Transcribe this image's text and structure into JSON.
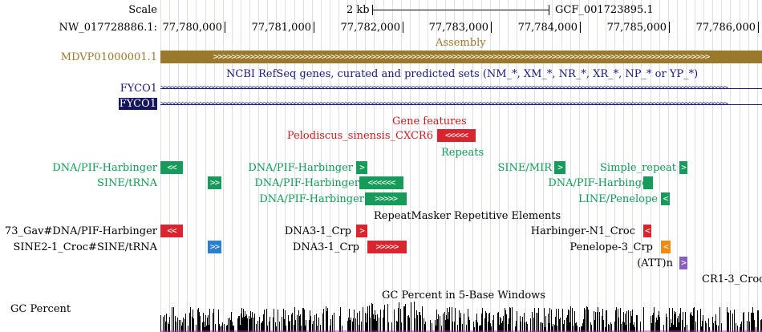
{
  "browser": {
    "scale_label": "Scale",
    "scale_value": "2 kb",
    "assembly_name": "GCF_001723895.1",
    "chrom_label": "NW_017728886.1:",
    "positions": [
      "77,780,000",
      "77,781,000",
      "77,782,000",
      "77,783,000",
      "77,784,000",
      "77,785,000",
      "77,786,000"
    ]
  },
  "assembly_track": {
    "title": "Assembly",
    "contig_label": "MDVP01000001.1",
    "color": "#9a7a2a"
  },
  "refseq_track": {
    "title": "NCBI RefSeq genes, curated and predicted sets (NM_*, XM_*, NR_*, XR_*, NP_* or YP_*)",
    "gene_1": "FYCO1",
    "gene_2": "FYCO1"
  },
  "gene_features": {
    "title": "Gene features",
    "item": "Pelodiscus_sinensis_CXCR6"
  },
  "repeats": {
    "title": "Repeats",
    "items": [
      "DNA/PIF-Harbinger",
      "DNA/PIF-Harbinger",
      "SINE/MIR",
      "Simple_repeat",
      "SINE/tRNA",
      "DNA/PIF-Harbinger",
      "DNA/PIF-Harbinger",
      "DNA/PIF-Harbinger",
      "LINE/Penelope"
    ]
  },
  "repeatmasker": {
    "title": "RepeatMasker Repetitive Elements",
    "items": [
      "73_Gav#DNA/PIF-Harbinger",
      "DNA3-1_Crp",
      "Harbinger-N1_Croc",
      "SINE2-1_Croc#SINE/tRNA",
      "DNA3-1_Crp",
      "Penelope-3_Crp",
      "(ATT)n",
      "CR1-3_Croc"
    ]
  },
  "gc_track": {
    "title": "GC Percent in 5-Base Windows",
    "label": "GC Percent"
  },
  "icons": [
    "arrow-right-glyph",
    "arrow-left-glyph"
  ]
}
